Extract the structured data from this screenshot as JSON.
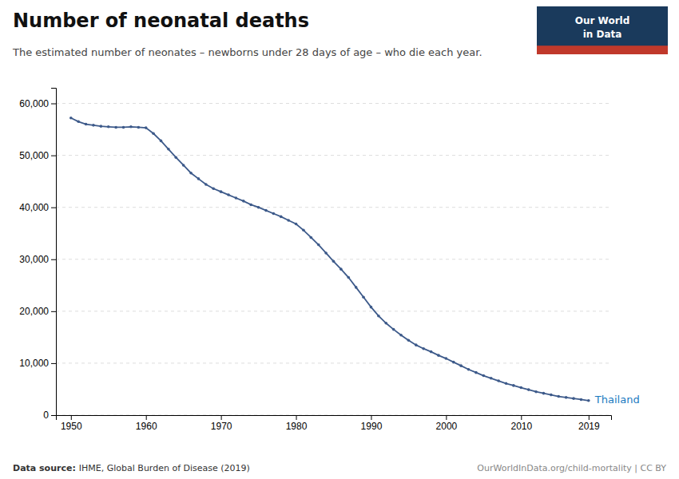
{
  "chart_data": {
    "type": "line",
    "title": "Number of neonatal deaths",
    "subtitle": "The estimated number of neonates – newborns under 28 days of age – who die each year.",
    "source_label": "Data source:",
    "source": "IHME, Global Burden of Disease (2019)",
    "copyright": "OurWorldInData.org/child-mortality | CC BY",
    "logo": {
      "text": [
        "Our World",
        "in Data"
      ],
      "colors": [
        "#1a3a5c",
        "#c0392b"
      ]
    },
    "annotations": [
      {
        "text": "Thailand",
        "color": "#1a7abf"
      }
    ],
    "color": "#3d5a8a",
    "marker": "circle",
    "grid": true,
    "xlim": [
      1948,
      2022
    ],
    "xticks": [
      1950,
      1960,
      1970,
      1980,
      1990,
      2000,
      2010,
      2019
    ],
    "ylim": [
      0,
      63000
    ],
    "yticks": [
      0,
      {
        "value": 10000,
        "label": "10,000"
      },
      {
        "value": 20000,
        "label": "20,000"
      },
      {
        "value": 30000,
        "label": "30,000"
      },
      {
        "value": 40000,
        "label": "40,000"
      },
      {
        "value": 50000,
        "label": "50,000"
      },
      {
        "value": 60000,
        "label": "60,000"
      }
    ],
    "x": [
      1950,
      1951,
      1952,
      1953,
      1954,
      1955,
      1956,
      1957,
      1958,
      1959,
      1960,
      1961,
      1962,
      1963,
      1964,
      1965,
      1966,
      1967,
      1968,
      1969,
      1970,
      1971,
      1972,
      1973,
      1974,
      1975,
      1976,
      1977,
      1978,
      1979,
      1980,
      1981,
      1982,
      1983,
      1984,
      1985,
      1986,
      1987,
      1988,
      1989,
      1990,
      1991,
      1992,
      1993,
      1994,
      1995,
      1996,
      1997,
      1998,
      1999,
      2000,
      2001,
      2002,
      2003,
      2004,
      2005,
      2006,
      2007,
      2008,
      2009,
      2010,
      2011,
      2012,
      2013,
      2014,
      2015,
      2016,
      2017,
      2018,
      2019
    ],
    "values": [
      57200,
      56500,
      56000,
      55800,
      55600,
      55500,
      55400,
      55400,
      55500,
      55400,
      55300,
      54200,
      52800,
      51200,
      49600,
      48100,
      46600,
      45500,
      44400,
      43600,
      43000,
      42400,
      41800,
      41200,
      40500,
      40000,
      39400,
      38800,
      38200,
      37500,
      36800,
      35600,
      34200,
      32800,
      31200,
      29600,
      28100,
      26500,
      24600,
      22700,
      20800,
      19100,
      17700,
      16500,
      15400,
      14400,
      13500,
      12800,
      12200,
      11500,
      10900,
      10200,
      9500,
      8800,
      8200,
      7600,
      7100,
      6600,
      6100,
      5700,
      5300,
      4900,
      4500,
      4200,
      3900,
      3600,
      3400,
      3200,
      3000,
      2800
    ]
  }
}
